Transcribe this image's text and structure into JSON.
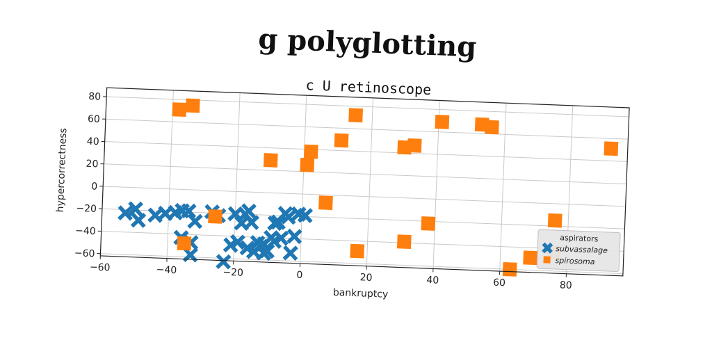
{
  "chart_data": {
    "type": "scatter",
    "title": "g polyglotting",
    "subtitle": "c U retinoscope",
    "xlabel": "bankruptcy",
    "ylabel": "hypercorrectness",
    "xlim": [
      -60,
      97
    ],
    "ylim": [
      -62,
      88
    ],
    "xticks": [
      -60,
      -40,
      -20,
      0,
      20,
      40,
      60,
      80
    ],
    "yticks": [
      -60,
      -40,
      -20,
      0,
      20,
      40,
      60,
      80
    ],
    "xtick_labels": [
      "−60",
      "−40",
      "−20",
      "0",
      "20",
      "40",
      "60",
      "80"
    ],
    "ytick_labels": [
      "−60",
      "−40",
      "−20",
      "0",
      "20",
      "40",
      "60",
      "80"
    ],
    "grid": true,
    "legend": {
      "title": "aspirators",
      "placement": "lower-right",
      "entries": [
        "subvassalage",
        "spirosoma"
      ]
    },
    "series": [
      {
        "name": "subvassalage",
        "marker": "x",
        "color": "#1f77b4",
        "points": [
          [
            -53,
            -23
          ],
          [
            -50,
            -19
          ],
          [
            -49,
            -29
          ],
          [
            -44,
            -24
          ],
          [
            -41,
            -22
          ],
          [
            -38,
            -21
          ],
          [
            -36,
            -19
          ],
          [
            -34,
            -19
          ],
          [
            -32,
            -28
          ],
          [
            -27,
            -19
          ],
          [
            -25,
            -22
          ],
          [
            -23,
            -63
          ],
          [
            -20,
            -20
          ],
          [
            -18,
            -28
          ],
          [
            -17,
            -20
          ],
          [
            -16,
            -17
          ],
          [
            -15,
            -27
          ],
          [
            -13,
            -45
          ],
          [
            -12,
            -48
          ],
          [
            -11,
            -46
          ],
          [
            -10,
            -52
          ],
          [
            -9,
            -40
          ],
          [
            -8,
            -27
          ],
          [
            -7,
            -26
          ],
          [
            -6,
            -40
          ],
          [
            -5,
            -18
          ],
          [
            -4,
            -21
          ],
          [
            -3,
            -53
          ],
          [
            -2,
            -38
          ],
          [
            -1,
            -18
          ],
          [
            1,
            -19
          ],
          [
            -19,
            -45
          ],
          [
            -16,
            -50
          ],
          [
            -14,
            -53
          ],
          [
            -36,
            -43
          ],
          [
            -33,
            -47
          ],
          [
            -33,
            -58
          ],
          [
            -21,
            -48
          ],
          [
            -11,
            -54
          ],
          [
            -8,
            -43
          ]
        ]
      },
      {
        "name": "spirosoma",
        "marker": "s",
        "color": "#ff7f0e",
        "points": [
          [
            -38,
            71
          ],
          [
            -34,
            75
          ],
          [
            -10,
            29
          ],
          [
            1,
            26
          ],
          [
            2,
            38
          ],
          [
            11,
            49
          ],
          [
            15,
            72
          ],
          [
            30,
            45
          ],
          [
            33,
            47
          ],
          [
            41,
            69
          ],
          [
            53,
            68
          ],
          [
            56,
            66
          ],
          [
            92,
            51
          ],
          [
            7,
            -7
          ],
          [
            17,
            -49
          ],
          [
            31,
            -39
          ],
          [
            38,
            -22
          ],
          [
            63,
            -60
          ],
          [
            69,
            -49
          ],
          [
            76,
            -15
          ],
          [
            76,
            -44
          ],
          [
            -35,
            -48
          ],
          [
            -26,
            -23
          ]
        ]
      }
    ]
  }
}
